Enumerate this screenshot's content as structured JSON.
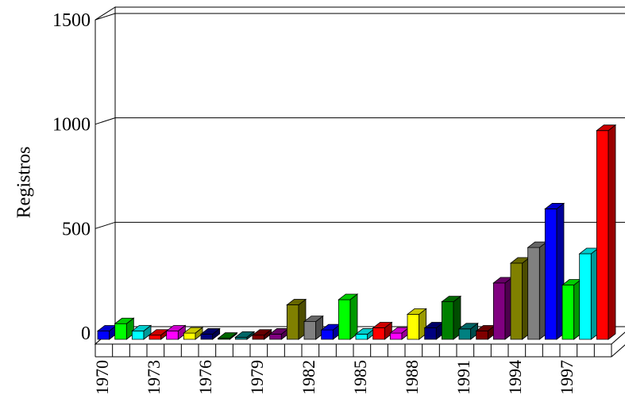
{
  "chart_data": {
    "type": "bar3d",
    "y_label": "Registros",
    "categories": [
      "1970",
      null,
      null,
      "1973",
      null,
      null,
      "1976",
      null,
      null,
      "1979",
      null,
      null,
      "1982",
      null,
      null,
      "1985",
      null,
      null,
      "1988",
      null,
      null,
      "1991",
      null,
      null,
      "1994",
      null,
      null,
      "1997",
      null,
      null
    ],
    "values": [
      40,
      75,
      40,
      20,
      40,
      30,
      25,
      5,
      10,
      20,
      25,
      165,
      85,
      45,
      190,
      25,
      55,
      30,
      120,
      55,
      180,
      50,
      40,
      270,
      365,
      440,
      625,
      260,
      410,
      1000
    ],
    "colors": [
      "#0000ff",
      "#00ff00",
      "#00ffff",
      "#ff0000",
      "#ff00ff",
      "#ffff00",
      "#000080",
      "#008000",
      "#008080",
      "#800000",
      "#800080",
      "#808000",
      "#808080",
      "#0000ff",
      "#00ff00",
      "#00ffff",
      "#ff0000",
      "#ff00ff",
      "#ffff00",
      "#000080",
      "#008000",
      "#008080",
      "#800000",
      "#800080",
      "#808000",
      "#808080",
      "#0000ff",
      "#00ff00",
      "#00ffff",
      "#ff0000"
    ],
    "ylim": [
      0,
      1500
    ],
    "yticks": [
      0,
      500,
      1000,
      1500
    ],
    "grid": true
  }
}
